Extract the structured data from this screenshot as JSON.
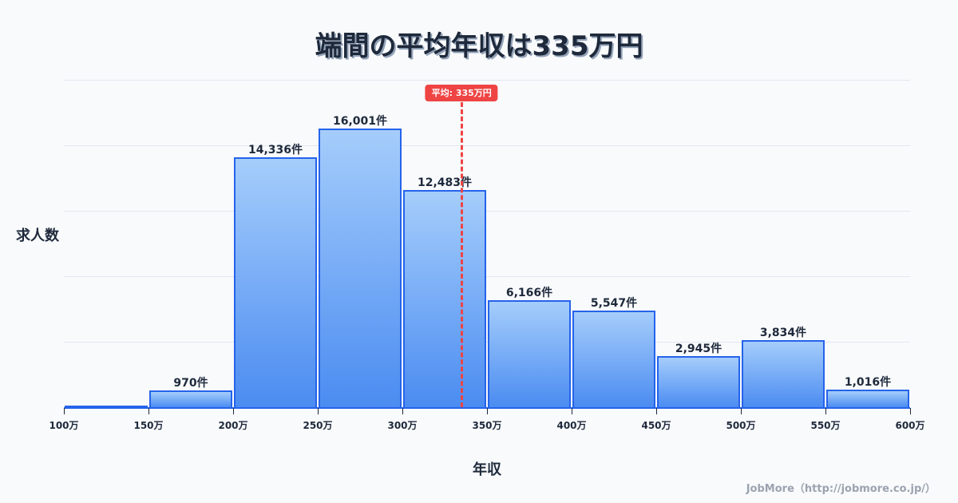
{
  "title": "端間の平均年収は335万円",
  "ylabel": "求人数",
  "xlabel": "年収",
  "footer": "JobMore（http://jobmore.co.jp/）",
  "mean_badge": "平均: 335万円",
  "colors": {
    "bar_top": "#a5cdfb",
    "bar_bottom": "#4b8cf1",
    "bar_border": "#2563eb",
    "mean_line": "#ef4444",
    "text": "#1e293b",
    "grid": "#e2e8f0",
    "background": "#f8fafc"
  },
  "chart_data": {
    "type": "bar",
    "title": "端間の平均年収は335万円",
    "xlabel": "年収",
    "ylabel": "求人数",
    "categories": [
      "100-150万",
      "150-200万",
      "200-250万",
      "250-300万",
      "300-350万",
      "350-400万",
      "400-450万",
      "450-500万",
      "500-550万",
      "550-600万"
    ],
    "bin_edges": [
      "100万",
      "150万",
      "200万",
      "250万",
      "300万",
      "350万",
      "400万",
      "450万",
      "500万",
      "550万",
      "600万"
    ],
    "values": [
      0,
      970,
      14336,
      16001,
      12483,
      6166,
      5547,
      2945,
      3834,
      1016
    ],
    "value_labels": [
      "",
      "970件",
      "14,336件",
      "16,001件",
      "12,483件",
      "6,166件",
      "5,547件",
      "2,945件",
      "3,834件",
      "1,016件"
    ],
    "ylim": [
      0,
      18800
    ],
    "grid": true,
    "y_ticks_visible": false,
    "annotations": [
      {
        "type": "vline",
        "x": 335,
        "label": "平均: 335万円",
        "style": "dashed",
        "color": "#ef4444"
      }
    ]
  }
}
